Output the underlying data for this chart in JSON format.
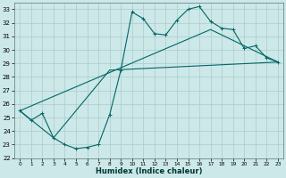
{
  "bg_color": "#cde8e8",
  "grid_color": "#aacccc",
  "line_color": "#006666",
  "xlabel": "Humidex (Indice chaleur)",
  "xlim": [
    -0.5,
    23.5
  ],
  "ylim": [
    22.0,
    33.5
  ],
  "yticks": [
    22,
    23,
    24,
    25,
    26,
    27,
    28,
    29,
    30,
    31,
    32,
    33
  ],
  "xticks": [
    0,
    1,
    2,
    3,
    4,
    5,
    6,
    7,
    8,
    9,
    10,
    11,
    12,
    13,
    14,
    15,
    16,
    17,
    18,
    19,
    20,
    21,
    22,
    23
  ],
  "line1_x": [
    0,
    1,
    2,
    3,
    4,
    5,
    6,
    7,
    8,
    9,
    10,
    11,
    12,
    13,
    14,
    15,
    16,
    17,
    18,
    19,
    20,
    21,
    22,
    23
  ],
  "line1_y": [
    25.5,
    24.8,
    25.3,
    23.5,
    23.0,
    22.7,
    22.8,
    23.0,
    25.2,
    28.5,
    32.8,
    32.3,
    31.2,
    31.1,
    32.2,
    33.0,
    33.2,
    32.1,
    31.6,
    31.5,
    30.1,
    30.3,
    29.4,
    29.1
  ],
  "line2_x": [
    0,
    17,
    23
  ],
  "line2_y": [
    25.5,
    31.5,
    29.1
  ],
  "line3_x": [
    0,
    3,
    8,
    23
  ],
  "line3_y": [
    25.5,
    23.5,
    28.5,
    29.1
  ]
}
